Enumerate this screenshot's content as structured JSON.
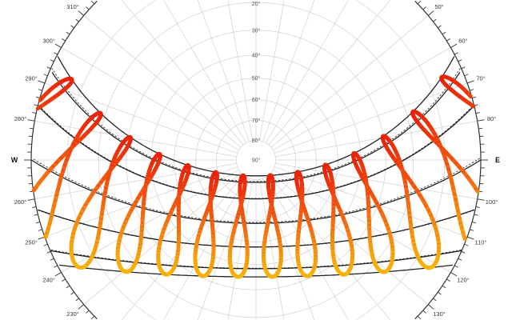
{
  "chart_data": {
    "type": "polar",
    "subtype": "sun-path-diagram",
    "projection": "stereographic",
    "title": "",
    "azimuth_labels": [
      {
        "azimuth": 50,
        "label": "50°"
      },
      {
        "azimuth": 60,
        "label": "60°"
      },
      {
        "azimuth": 70,
        "label": "70°"
      },
      {
        "azimuth": 80,
        "label": "80°"
      },
      {
        "azimuth": 90,
        "label": "E"
      },
      {
        "azimuth": 100,
        "label": "100°"
      },
      {
        "azimuth": 110,
        "label": "110°"
      },
      {
        "azimuth": 120,
        "label": "120°"
      },
      {
        "azimuth": 130,
        "label": "130°"
      },
      {
        "azimuth": 230,
        "label": "230°"
      },
      {
        "azimuth": 240,
        "label": "240°"
      },
      {
        "azimuth": 250,
        "label": "250°"
      },
      {
        "azimuth": 260,
        "label": "260°"
      },
      {
        "azimuth": 270,
        "label": "W"
      },
      {
        "azimuth": 280,
        "label": "280°"
      },
      {
        "azimuth": 290,
        "label": "290°"
      },
      {
        "azimuth": 300,
        "label": "300°"
      },
      {
        "azimuth": 310,
        "label": "310°"
      }
    ],
    "altitude_labels": [
      {
        "altitude": 20,
        "label": "20°"
      },
      {
        "altitude": 30,
        "label": "30°"
      },
      {
        "altitude": 40,
        "label": "40°"
      },
      {
        "altitude": 50,
        "label": "50°"
      },
      {
        "altitude": 60,
        "label": "60°"
      },
      {
        "altitude": 70,
        "label": "70°"
      },
      {
        "altitude": 80,
        "label": "80°"
      },
      {
        "altitude": 90,
        "label": "90°"
      }
    ],
    "grid": true,
    "analemma_count": 15,
    "day_curves": {
      "solid_declinations": [
        23.44,
        20.1,
        11.9,
        0.0,
        -10.8,
        -20.1,
        -23.44
      ],
      "dashed_declinations": [
        20.6,
        12.1,
        0.5,
        -10.9,
        -19.9
      ]
    },
    "colors": {
      "analemma_high": "#e8200a",
      "analemma_mid": "#f26212",
      "analemma_low": "#f7b60a",
      "day_curve": "#222222",
      "grid": "#d0d0d0"
    }
  }
}
